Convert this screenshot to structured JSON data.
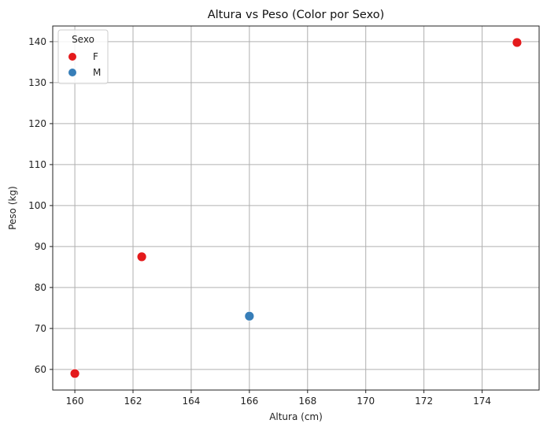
{
  "chart_data": {
    "type": "scatter",
    "title": "Altura vs Peso (Color por Sexo)",
    "xlabel": "Altura (cm)",
    "ylabel": "Peso (kg)",
    "xlim": [
      159.24,
      175.96
    ],
    "ylim": [
      54.97,
      143.83
    ],
    "xticks": [
      160,
      162,
      164,
      166,
      168,
      170,
      172,
      174
    ],
    "yticks": [
      60,
      70,
      80,
      90,
      100,
      110,
      120,
      130,
      140
    ],
    "grid": true,
    "legend": {
      "title": "Sexo",
      "placement": "top-left"
    },
    "series": [
      {
        "name": "F",
        "color": "#e41a1c",
        "points": [
          {
            "x": 160.0,
            "y": 59.0
          },
          {
            "x": 162.3,
            "y": 87.5
          },
          {
            "x": 175.2,
            "y": 139.8
          }
        ]
      },
      {
        "name": "M",
        "color": "#377eb8",
        "points": [
          {
            "x": 166.0,
            "y": 73.0
          }
        ]
      }
    ]
  }
}
